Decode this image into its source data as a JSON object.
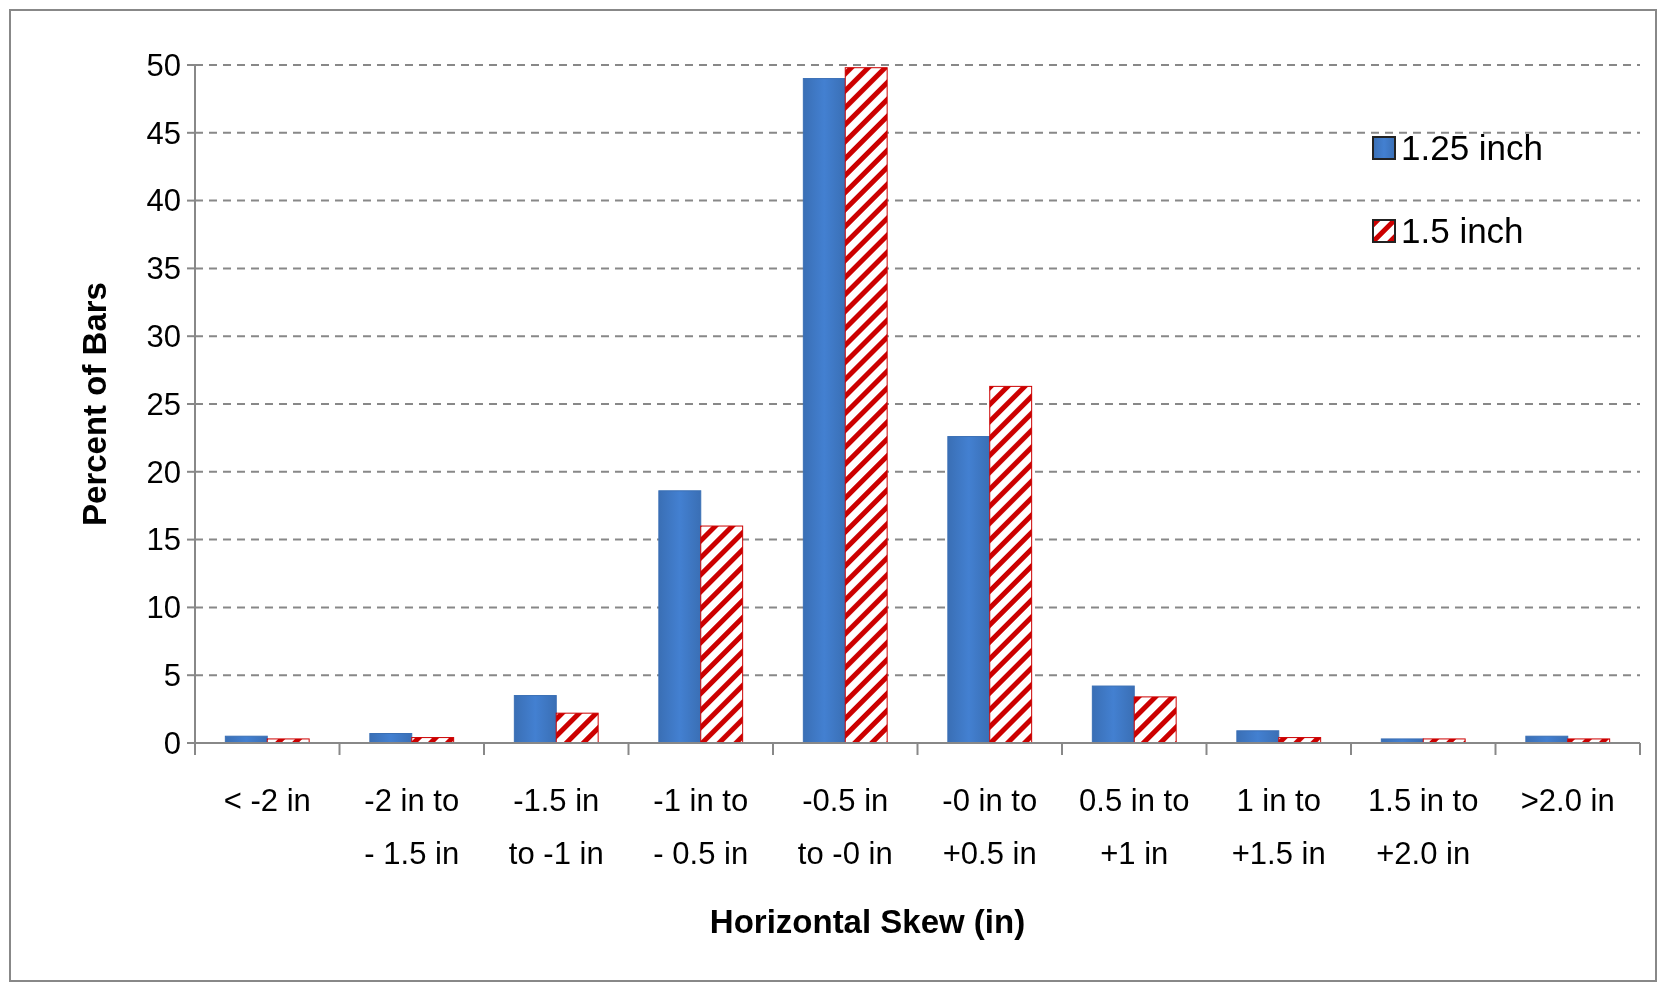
{
  "chart_data": {
    "type": "bar",
    "xlabel": "Horizontal Skew (in)",
    "ylabel": "Percent of Bars",
    "categories": [
      "< -2 in",
      "-2 in to - 1.5 in",
      "-1.5 in to -1 in",
      "-1 in to - 0.5 in",
      "-0.5 in to -0 in",
      "-0 in to +0.5 in",
      "0.5 in to +1 in",
      "1 in to +1.5 in",
      "1.5 in to +2.0 in",
      ">2.0 in"
    ],
    "series": [
      {
        "name": "1.25 inch",
        "color": "#3a6fb5",
        "values": [
          0.5,
          0.7,
          3.5,
          18.6,
          49.0,
          22.6,
          4.2,
          0.9,
          0.3,
          0.5
        ]
      },
      {
        "name": "1.5 inch",
        "color": "#cc0000",
        "values": [
          0.3,
          0.4,
          2.2,
          16.0,
          49.8,
          26.3,
          3.4,
          0.4,
          0.3,
          0.3
        ]
      }
    ],
    "ylim": [
      0,
      50
    ],
    "yticks": [
      0,
      5,
      10,
      15,
      20,
      25,
      30,
      35,
      40,
      45,
      50
    ],
    "grid": "y",
    "legend": "top right"
  }
}
